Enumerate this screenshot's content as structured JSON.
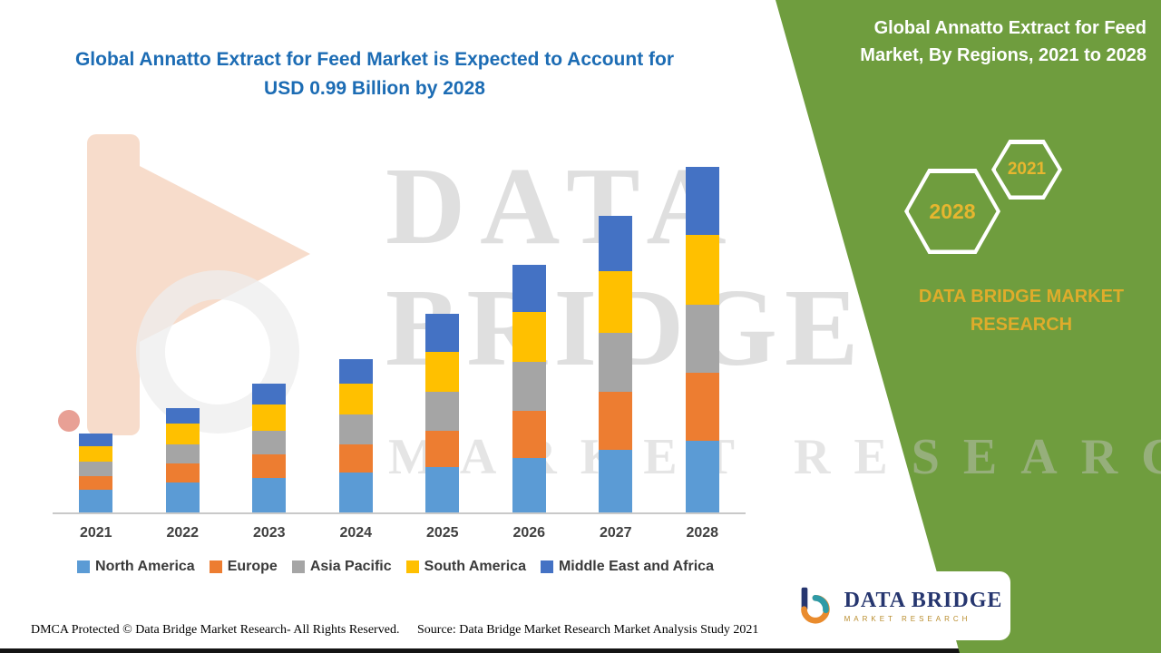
{
  "header": {
    "left_title": "Global Annatto Extract for Feed Market is Expected to Account for USD 0.99 Billion by 2028",
    "right_title": "Global Annatto Extract for Feed Market, By Regions, 2021 to 2028"
  },
  "right_panel": {
    "hexagons": {
      "front": "2028",
      "back": "2021"
    },
    "brand_text": "DATA BRIDGE MARKET RESEARCH",
    "panel_color": "#6f9d3e",
    "accent_gold": "#e7b62f"
  },
  "watermark": {
    "line1": "DATA",
    "line2": "BRIDGE",
    "line3": "MARKET RESEARCH"
  },
  "logo": {
    "title": "DATA BRIDGE",
    "subtitle": "MARKET RESEARCH"
  },
  "footer": {
    "dmca": "DMCA Protected © Data Bridge Market Research- All Rights Reserved.",
    "source": "Source: Data Bridge Market Research Market Analysis Study 2021"
  },
  "colors": {
    "title_blue": "#1c6cb4",
    "axis_gray": "#c9c9c9"
  },
  "chart_data": {
    "type": "bar",
    "stacked": true,
    "title": "Global Annatto Extract for Feed Market is Expected to Account for USD 0.99 Billion by 2028",
    "xlabel": "",
    "ylabel": "",
    "value_unit": "USD Billion",
    "ylim": [
      0,
      1.05
    ],
    "grid": false,
    "legend_position": "bottom",
    "categories": [
      "2021",
      "2022",
      "2023",
      "2024",
      "2025",
      "2026",
      "2027",
      "2028"
    ],
    "series": [
      {
        "name": "North America",
        "color": "#5B9BD5",
        "values": [
          0.065,
          0.085,
          0.1,
          0.115,
          0.13,
          0.155,
          0.18,
          0.205
        ]
      },
      {
        "name": "Europe",
        "color": "#ED7D31",
        "values": [
          0.04,
          0.055,
          0.065,
          0.08,
          0.105,
          0.135,
          0.165,
          0.195
        ]
      },
      {
        "name": "Asia Pacific",
        "color": "#A5A5A5",
        "values": [
          0.04,
          0.055,
          0.07,
          0.085,
          0.11,
          0.14,
          0.17,
          0.195
        ]
      },
      {
        "name": "South America",
        "color": "#FFC000",
        "values": [
          0.045,
          0.06,
          0.075,
          0.09,
          0.115,
          0.145,
          0.175,
          0.2
        ]
      },
      {
        "name": "Middle East and Africa",
        "color": "#4472C4",
        "values": [
          0.035,
          0.045,
          0.06,
          0.07,
          0.11,
          0.135,
          0.16,
          0.195
        ]
      }
    ],
    "totals": [
      0.225,
      0.3,
      0.37,
      0.44,
      0.57,
      0.71,
      0.85,
      0.99
    ]
  }
}
